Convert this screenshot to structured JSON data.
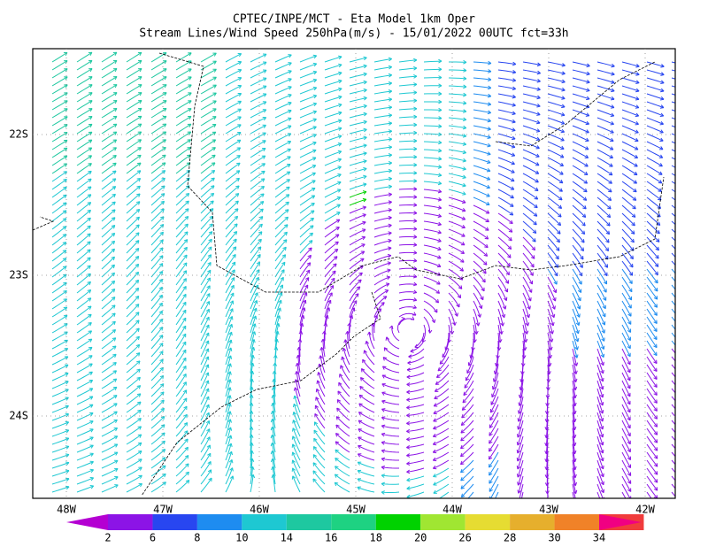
{
  "title": [
    "CPTEC/INPE/MCT -  Eta Model 1km Oper",
    "Stream Lines/Wind Speed 250hPa(m/s) - 15/01/2022 00UTC fct=33h"
  ],
  "map": {
    "lon_labels": [
      "48W",
      "47W",
      "46W",
      "45W",
      "44W",
      "43W",
      "42W"
    ],
    "lat_labels": [
      "22S",
      "23S",
      "24S"
    ]
  },
  "colorbar": {
    "labels": [
      2,
      6,
      8,
      10,
      14,
      16,
      18,
      20,
      26,
      28,
      30,
      34
    ],
    "colors": [
      "#b400d2",
      "#8c14e6",
      "#2846f0",
      "#1e8cf0",
      "#1ec8d2",
      "#1ec8a0",
      "#1ed282",
      "#00d200",
      "#a0e632",
      "#e6dc32",
      "#e6af2d",
      "#f08228",
      "#f03c3c",
      "#f00082"
    ]
  }
}
